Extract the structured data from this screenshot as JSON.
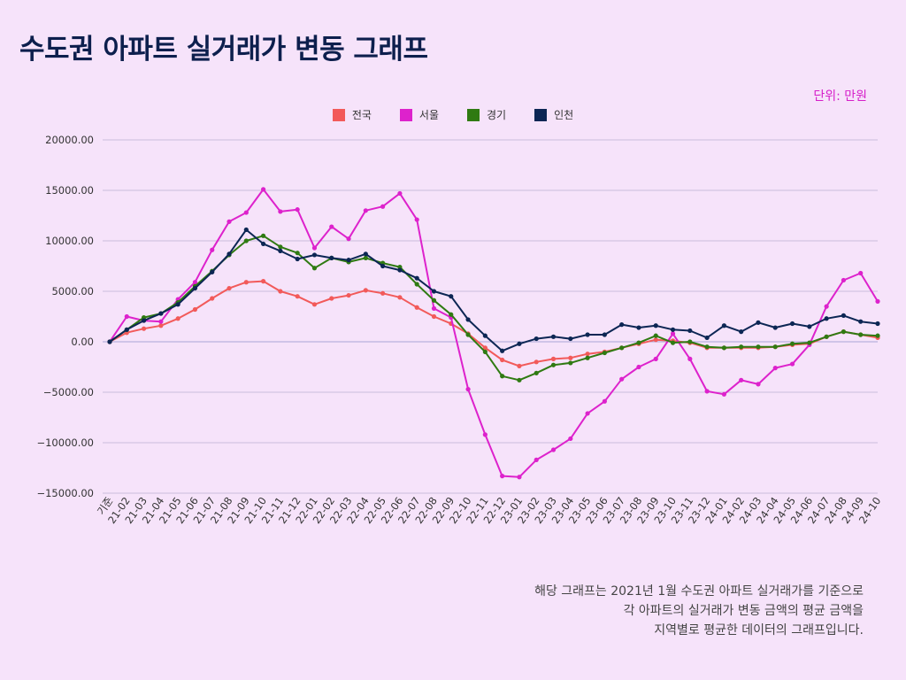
{
  "page": {
    "title": "수도권 아파트 실거래가 변동 그래프",
    "unit": "단위: 만원",
    "footnote": [
      "해당 그래프는 2021년 1월 수도권 아파트 실거래가를 기준으로",
      "각 아파트의 실거래가 변동 금액의 평균 금액을",
      "지역별로 평균한 데이터의 그래프입니다."
    ]
  },
  "chart_data": {
    "type": "line",
    "title": "수도권 아파트 실거래가 변동 그래프",
    "xlabel": "",
    "ylabel": "",
    "ylim": [
      -15000,
      20000
    ],
    "yticks": [
      20000,
      15000,
      10000,
      5000,
      0,
      -5000,
      -10000,
      -15000
    ],
    "ytick_labels": [
      "20000.00",
      "15000.00",
      "10000.00",
      "5000.00",
      "0.00",
      "−5000.00",
      "−10000.00",
      "−15000.00"
    ],
    "grid": true,
    "legend_position": "top-center",
    "categories": [
      "기준",
      "21-02",
      "21-03",
      "21-04",
      "21-05",
      "21-06",
      "21-07",
      "21-08",
      "21-09",
      "21-10",
      "21-11",
      "21-12",
      "22-01",
      "22-02",
      "22-03",
      "22-04",
      "22-05",
      "22-06",
      "22-07",
      "22-08",
      "22-09",
      "22-10",
      "22-11",
      "22-12",
      "23-01",
      "23-02",
      "23-03",
      "23-04",
      "23-05",
      "23-06",
      "23-07",
      "23-08",
      "23-09",
      "23-10",
      "23-11",
      "23-12",
      "24-01",
      "24-02",
      "24-03",
      "24-04",
      "24-05",
      "24-06",
      "24-07",
      "24-08",
      "24-09",
      "24-10"
    ],
    "series": [
      {
        "name": "전국",
        "color": "#f25a5a",
        "values": [
          0,
          900,
          1300,
          1600,
          2300,
          3200,
          4300,
          5300,
          5900,
          6000,
          5000,
          4500,
          3700,
          4300,
          4600,
          5100,
          4800,
          4400,
          3400,
          2500,
          1800,
          800,
          -600,
          -1800,
          -2400,
          -2000,
          -1700,
          -1600,
          -1200,
          -1000,
          -600,
          -200,
          200,
          100,
          -100,
          -600,
          -600,
          -600,
          -600,
          -500,
          -300,
          -200,
          500,
          1000,
          700,
          400
        ]
      },
      {
        "name": "서울",
        "color": "#dd22cc",
        "values": [
          0,
          2500,
          2100,
          2000,
          4200,
          5900,
          9100,
          11900,
          12800,
          15100,
          12900,
          13100,
          9300,
          11400,
          10200,
          13000,
          13400,
          14700,
          12100,
          3300,
          2400,
          -4700,
          -9200,
          -13300,
          -13400,
          -11700,
          -10700,
          -9600,
          -7100,
          -5900,
          -3700,
          -2500,
          -1700,
          800,
          -1700,
          -4900,
          -5200,
          -3800,
          -4200,
          -2600,
          -2200,
          -300,
          3500,
          6100,
          6800,
          4000
        ]
      },
      {
        "name": "경기",
        "color": "#2f7a12",
        "values": [
          0,
          1200,
          2400,
          2800,
          3900,
          5500,
          7000,
          8600,
          10000,
          10500,
          9400,
          8800,
          7300,
          8300,
          7900,
          8300,
          7800,
          7400,
          5700,
          4100,
          2700,
          700,
          -1000,
          -3400,
          -3800,
          -3100,
          -2300,
          -2100,
          -1600,
          -1100,
          -600,
          -100,
          600,
          -100,
          0,
          -500,
          -600,
          -500,
          -500,
          -500,
          -200,
          -100,
          500,
          1000,
          700,
          600
        ]
      },
      {
        "name": "인천",
        "color": "#0c2654",
        "values": [
          0,
          1200,
          2100,
          2800,
          3700,
          5300,
          6900,
          8700,
          11100,
          9700,
          9000,
          8200,
          8600,
          8300,
          8100,
          8700,
          7500,
          7100,
          6300,
          5000,
          4500,
          2200,
          600,
          -900,
          -200,
          300,
          500,
          300,
          700,
          700,
          1700,
          1400,
          1600,
          1200,
          1100,
          400,
          1600,
          1000,
          1900,
          1400,
          1800,
          1500,
          2300,
          2600,
          2000,
          1800
        ]
      }
    ]
  }
}
